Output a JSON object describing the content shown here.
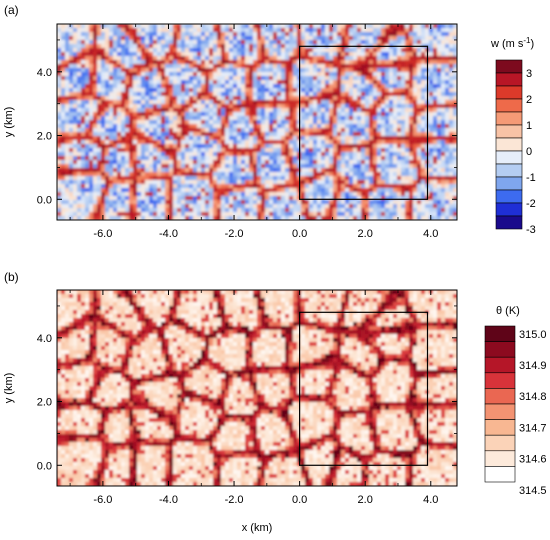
{
  "chart_data": [
    {
      "type": "heatmap",
      "panel_label": "(a)",
      "variable": "w",
      "colorbar_title_base": "w (m s",
      "colorbar_title_exp": "-1",
      "colorbar_title_close": ")",
      "xlabel": "",
      "ylabel": "y (km)",
      "xlim": [
        -7.4,
        4.8
      ],
      "ylim": [
        -0.65,
        5.5
      ],
      "x_ticks": [
        "-6.0",
        "-4.0",
        "-2.0",
        "0.0",
        "2.0",
        "4.0"
      ],
      "y_ticks": [
        "0.0",
        "2.0",
        "4.0"
      ],
      "colorbar_levels": [
        "-3",
        "-2",
        "-1",
        "0",
        "1",
        "2",
        "3"
      ],
      "colorbar_colors": [
        "#1a0a8c",
        "#1f2fd6",
        "#3d6bf0",
        "#7fa6ee",
        "#b4cdf2",
        "#e6eefa",
        "#fbe6d6",
        "#f8c3a6",
        "#f59a76",
        "#ee6a4a",
        "#dc3a2a",
        "#b81626",
        "#7d0a1e"
      ],
      "inset_box": {
        "x": [
          0.0,
          3.9
        ],
        "y": [
          0.0,
          4.8
        ]
      },
      "field_description": "cellular convective pattern; narrow red updraft lines surrounding broad blue downdraft cells"
    },
    {
      "type": "heatmap",
      "panel_label": "(b)",
      "variable": "θ",
      "colorbar_title": "θ (K)",
      "xlabel": "x (km)",
      "ylabel": "y (km)",
      "xlim": [
        -7.4,
        4.8
      ],
      "ylim": [
        -0.65,
        5.5
      ],
      "x_ticks": [
        "-6.0",
        "-4.0",
        "-2.0",
        "0.0",
        "2.0",
        "4.0"
      ],
      "y_ticks": [
        "0.0",
        "2.0",
        "4.0"
      ],
      "colorbar_levels": [
        "314.5",
        "314.6",
        "314.7",
        "314.8",
        "314.9",
        "315.0"
      ],
      "colorbar_colors": [
        "#ffffff",
        "#fdeadb",
        "#fbd3b8",
        "#f8b792",
        "#f39372",
        "#ea6752",
        "#d8333a",
        "#b51628",
        "#8c0a1f",
        "#5f0418"
      ],
      "inset_box": {
        "x": [
          0.0,
          3.9
        ],
        "y": [
          0.0,
          4.8
        ]
      },
      "field_description": "cellular potential temperature pattern; warm dark red cell edges, cool pale cell interiors"
    }
  ]
}
